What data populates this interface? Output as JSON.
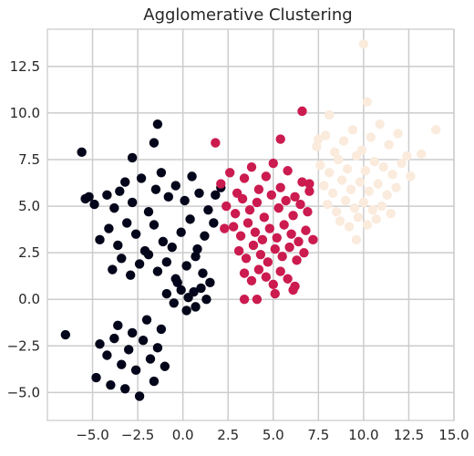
{
  "chart_data": {
    "type": "scatter",
    "title": "Agglomerative Clustering",
    "xlabel": "",
    "ylabel": "",
    "xlim": [
      -7.5,
      15.0
    ],
    "ylim": [
      -6.5,
      14.5
    ],
    "grid": true,
    "legend": "none",
    "x_ticks": [
      -5.0,
      -2.5,
      0.0,
      2.5,
      5.0,
      7.5,
      10.0,
      12.5,
      15.0
    ],
    "x_tick_labels": [
      "−5.0",
      "−2.5",
      "0.0",
      "2.5",
      "5.0",
      "7.5",
      "10.0",
      "12.5",
      "15.0"
    ],
    "y_ticks": [
      -5.0,
      -2.5,
      0.0,
      2.5,
      5.0,
      7.5,
      10.0,
      12.5
    ],
    "y_tick_labels": [
      "−5.0",
      "−2.5",
      "0.0",
      "2.5",
      "5.0",
      "7.5",
      "10.0",
      "12.5"
    ],
    "colors": {
      "grid": "#cccccc",
      "axis_frame": "#cccccc",
      "cluster_0": "#03051a",
      "cluster_1": "#cb1b4f",
      "cluster_2": "#faebdd"
    },
    "series": [
      {
        "cluster": 0,
        "color": "#03051a",
        "x": [
          -5.4,
          -4.9,
          -4.2,
          -3.8,
          -3.5,
          -3.2,
          -2.8,
          -2.3,
          -1.9,
          -1.5,
          -1.2,
          -0.8,
          -0.4,
          0.1,
          0.5,
          0.9,
          1.4,
          1.8,
          2.1,
          -4.6,
          -4.1,
          -3.6,
          -3.1,
          -2.6,
          -2.1,
          -1.6,
          -1.1,
          -0.6,
          -0.1,
          0.4,
          0.8,
          1.2,
          1.7,
          -3.9,
          -3.4,
          -2.9,
          -2.4,
          -1.9,
          -1.4,
          -0.9,
          -0.4,
          0.2,
          0.7,
          1.1,
          1.5,
          -0.9,
          -0.5,
          -0.1,
          0.3,
          0.7,
          1.0,
          1.3,
          -0.3,
          0.2,
          0.6,
          -4.6,
          -4.2,
          -3.8,
          -3.4,
          -3.0,
          -2.6,
          -2.2,
          -1.8,
          -1.4,
          -1.0,
          -4.8,
          -4.0,
          -3.2,
          -2.4,
          -1.6,
          -3.6,
          -2.8,
          -2.0,
          -1.2,
          -6.5,
          -5.6,
          -5.2,
          -1.4,
          -2.8,
          -1.6
        ],
        "y": [
          5.4,
          5.1,
          5.6,
          4.9,
          5.8,
          6.3,
          5.2,
          6.5,
          4.7,
          5.9,
          6.8,
          5.5,
          6.1,
          5.3,
          6.6,
          5.7,
          4.8,
          5.6,
          6.0,
          3.2,
          3.8,
          2.9,
          4.1,
          3.5,
          2.6,
          4.0,
          3.1,
          2.8,
          3.6,
          4.3,
          2.7,
          3.4,
          4.1,
          1.6,
          2.2,
          1.3,
          1.9,
          2.4,
          1.5,
          2.0,
          1.1,
          1.8,
          2.3,
          1.4,
          0.9,
          0.3,
          -0.2,
          0.5,
          0.1,
          -0.4,
          0.6,
          0.0,
          0.9,
          -0.6,
          0.4,
          -2.4,
          -3.0,
          -2.1,
          -3.5,
          -2.7,
          -3.8,
          -2.2,
          -3.2,
          -2.6,
          -3.6,
          -4.2,
          -4.6,
          -4.8,
          -5.2,
          -4.4,
          -1.4,
          -1.8,
          -1.1,
          -1.6,
          -1.9,
          7.9,
          5.5,
          9.4,
          7.6,
          8.4
        ]
      },
      {
        "cluster": 1,
        "color": "#cb1b4f",
        "x": [
          2.1,
          2.6,
          3.0,
          3.4,
          3.8,
          4.2,
          4.6,
          5.0,
          5.4,
          5.8,
          6.2,
          6.6,
          7.0,
          2.4,
          2.9,
          3.3,
          3.7,
          4.1,
          4.5,
          4.9,
          5.3,
          5.7,
          6.1,
          6.5,
          6.9,
          2.8,
          3.2,
          3.6,
          4.0,
          4.4,
          4.8,
          5.2,
          5.6,
          6.0,
          6.4,
          6.8,
          3.1,
          3.5,
          3.9,
          4.3,
          4.7,
          5.1,
          5.5,
          5.9,
          6.3,
          6.7,
          3.4,
          3.8,
          4.2,
          4.6,
          5.0,
          5.4,
          5.8,
          6.2,
          4.1,
          5.1,
          6.1,
          2.3,
          7.2,
          5.4,
          6.6,
          7.0,
          3.4,
          1.8
        ],
        "y": [
          6.2,
          6.8,
          5.7,
          6.5,
          7.1,
          5.9,
          6.6,
          7.3,
          6.0,
          6.9,
          5.5,
          6.3,
          5.8,
          5.0,
          4.6,
          5.4,
          4.8,
          5.2,
          4.4,
          5.6,
          4.9,
          5.3,
          4.5,
          5.1,
          4.7,
          3.9,
          3.4,
          4.1,
          3.6,
          3.2,
          3.8,
          3.3,
          4.0,
          3.5,
          3.1,
          3.7,
          2.6,
          2.2,
          2.9,
          2.4,
          2.0,
          2.7,
          2.3,
          2.8,
          2.1,
          2.5,
          1.4,
          1.0,
          1.6,
          1.2,
          0.8,
          1.5,
          1.1,
          0.7,
          0.0,
          0.3,
          0.5,
          3.8,
          3.2,
          8.6,
          10.1,
          6.2,
          0.0,
          8.4
        ]
      },
      {
        "cluster": 2,
        "color": "#faebdd",
        "x": [
          7.4,
          7.9,
          8.4,
          8.9,
          9.4,
          9.9,
          10.4,
          10.9,
          11.4,
          11.9,
          12.4,
          7.6,
          8.1,
          8.6,
          9.1,
          9.6,
          10.1,
          10.6,
          11.1,
          11.6,
          12.1,
          12.6,
          7.8,
          8.3,
          8.8,
          9.3,
          9.8,
          10.3,
          10.8,
          11.3,
          11.8,
          8.0,
          8.5,
          9.0,
          9.5,
          10.0,
          10.5,
          11.0,
          11.5,
          8.7,
          9.2,
          9.7,
          10.2,
          10.7,
          10.0,
          14.0,
          13.2,
          9.6,
          10.2,
          8.1,
          7.5
        ],
        "y": [
          8.2,
          8.8,
          7.9,
          8.5,
          9.1,
          8.0,
          8.7,
          9.4,
          8.3,
          8.9,
          7.7,
          7.2,
          6.8,
          7.5,
          7.0,
          7.7,
          6.9,
          7.4,
          7.1,
          6.7,
          7.3,
          6.6,
          6.1,
          5.7,
          6.4,
          5.9,
          6.3,
          5.8,
          6.2,
          5.6,
          6.0,
          5.1,
          4.7,
          5.3,
          4.9,
          5.2,
          4.8,
          5.0,
          4.6,
          4.2,
          3.9,
          4.4,
          4.0,
          4.3,
          13.7,
          9.1,
          7.8,
          3.2,
          10.6,
          9.9,
          8.6
        ]
      }
    ]
  }
}
